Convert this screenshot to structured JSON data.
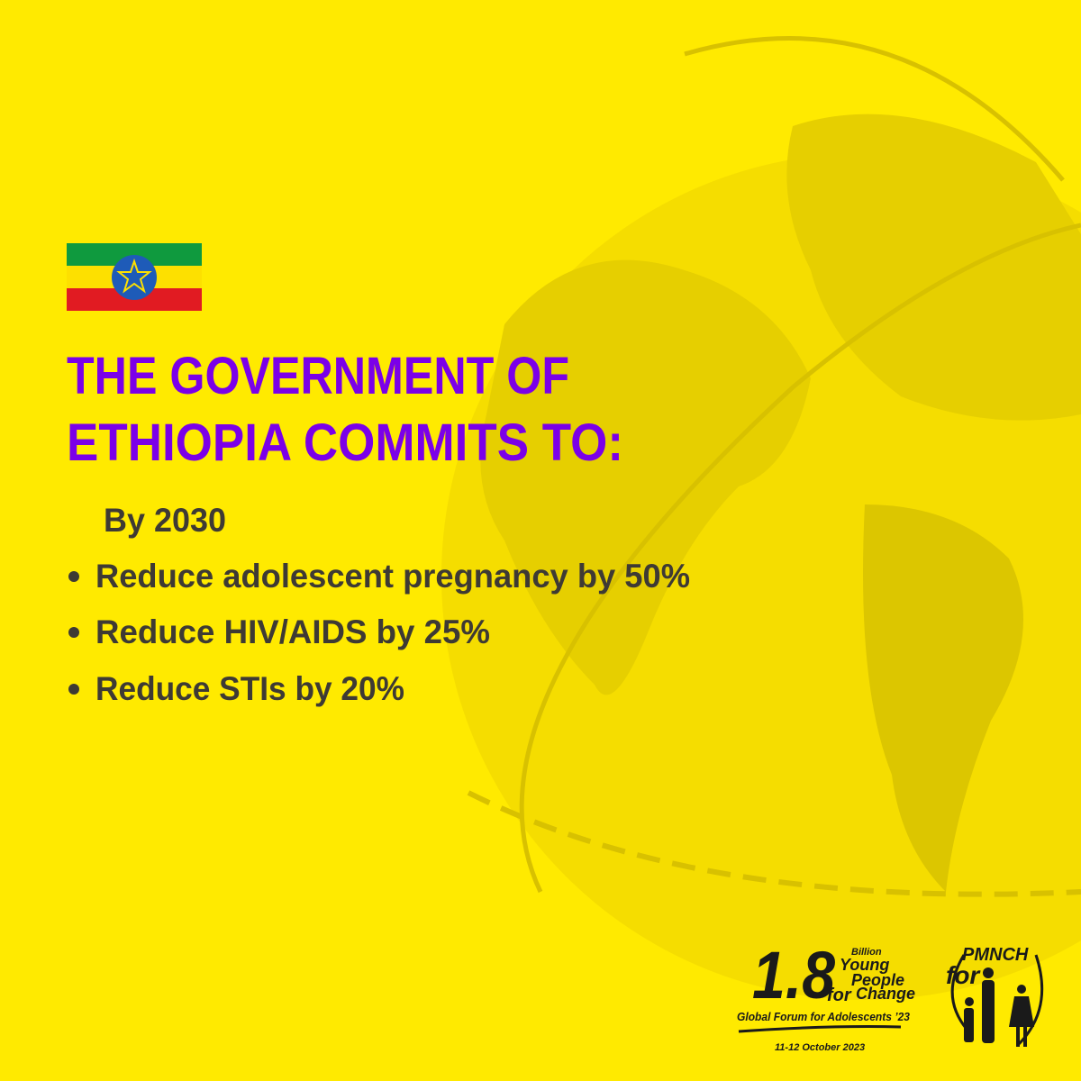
{
  "heading": {
    "lines": [
      "THE GOVERNMENT OF",
      "ETHIOPIA COMMITS TO:"
    ]
  },
  "commitments": {
    "intro": "By 2030",
    "items": [
      "Reduce adolescent pregnancy by 50%",
      "Reduce HIV/AIDS by 25%",
      "Reduce STIs by 20%"
    ]
  },
  "logos": {
    "forum": {
      "number": "1.8",
      "billion": "Billion",
      "young": "Young",
      "people": "People",
      "for": "for",
      "change": "Change",
      "name": "Global Forum for Adolescents ’23",
      "dates": "11-12 October 2023"
    },
    "pmnch": {
      "for": "for",
      "name": "PMNCH"
    }
  }
}
